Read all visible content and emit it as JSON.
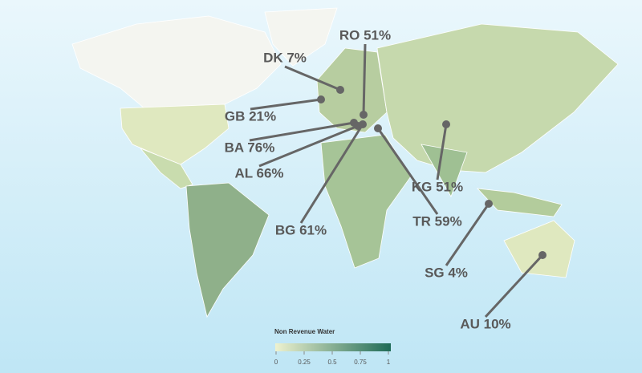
{
  "callouts": [
    {
      "label": "RO 51%"
    },
    {
      "label": "DK 7%"
    },
    {
      "label": "GB 21%"
    },
    {
      "label": "BA 76%"
    },
    {
      "label": "AL 66%"
    },
    {
      "label": "BG 61%"
    },
    {
      "label": "TR 59%"
    },
    {
      "label": "KG 51%"
    },
    {
      "label": "SG 4%"
    },
    {
      "label": "AU 10%"
    }
  ],
  "legend": {
    "title": "Non Revenue Water",
    "colors": [
      "#eef2cf",
      "#1f6b57"
    ],
    "ticks": [
      0,
      {
        "value": 0.25,
        "label": "0.25"
      },
      {
        "value": 0.5,
        "label": "0.5"
      },
      {
        "value": 0.75,
        "label": "0.75"
      },
      1
    ]
  }
}
